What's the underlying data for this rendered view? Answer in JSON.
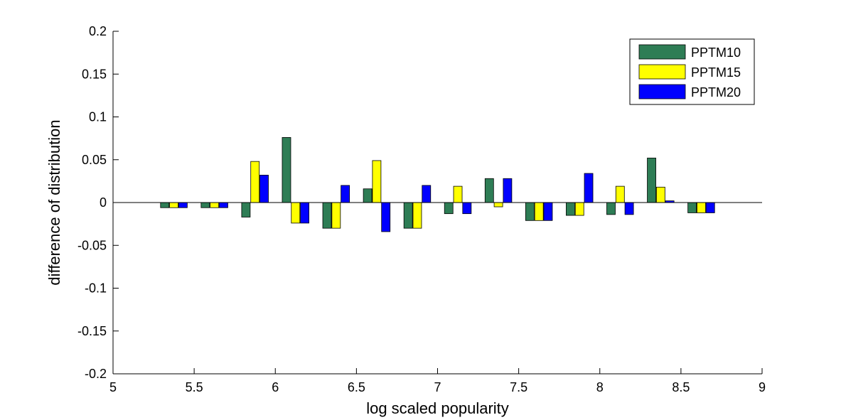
{
  "chart_data": {
    "type": "bar",
    "title": "",
    "xlabel": "log scaled popularity",
    "ylabel": "difference of distribution",
    "xlim": [
      5,
      9
    ],
    "ylim": [
      -0.2,
      0.2
    ],
    "grid": false,
    "legend_position": "top-right",
    "x": [
      5.375,
      5.625,
      5.875,
      6.125,
      6.375,
      6.625,
      6.875,
      7.125,
      7.375,
      7.625,
      7.875,
      8.125,
      8.375,
      8.625
    ],
    "series": [
      {
        "name": "PPTM10",
        "color": "#2e7d55",
        "values": [
          -0.006,
          -0.006,
          -0.017,
          0.076,
          -0.03,
          0.016,
          -0.03,
          -0.013,
          0.028,
          -0.021,
          -0.015,
          -0.014,
          0.052,
          -0.012
        ]
      },
      {
        "name": "PPTM15",
        "color": "#ffff00",
        "values": [
          -0.006,
          -0.006,
          0.048,
          -0.024,
          -0.03,
          0.049,
          -0.03,
          0.019,
          -0.005,
          -0.021,
          -0.015,
          0.019,
          0.018,
          -0.012
        ]
      },
      {
        "name": "PPTM20",
        "color": "#0000ff",
        "values": [
          -0.006,
          -0.006,
          0.032,
          -0.024,
          0.02,
          -0.034,
          0.02,
          -0.013,
          0.028,
          -0.021,
          0.034,
          -0.014,
          0.002,
          -0.012
        ]
      }
    ],
    "xticks": [
      5,
      5.5,
      6,
      6.5,
      7,
      7.5,
      8,
      8.5,
      9
    ],
    "xtick_labels": [
      "5",
      "5.5",
      "6",
      "6.5",
      "7",
      "7.5",
      "8",
      "8.5",
      "9"
    ],
    "yticks": [
      -0.2,
      -0.15,
      -0.1,
      -0.05,
      0,
      0.05,
      0.1,
      0.15,
      0.2
    ],
    "ytick_labels": [
      "-0.2",
      "-0.15",
      "-0.1",
      "-0.05",
      "0",
      "0.05",
      "0.1",
      "0.15",
      "0.2"
    ]
  }
}
